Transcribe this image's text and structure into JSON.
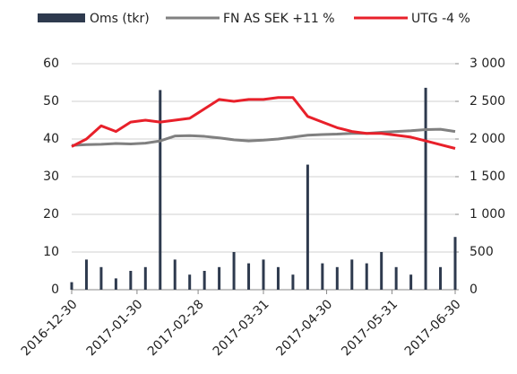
{
  "chart_data": {
    "type": "combo",
    "x": [
      "2016-12-30",
      "2017-01-06",
      "2017-01-13",
      "2017-01-20",
      "2017-01-27",
      "2017-02-03",
      "2017-02-10",
      "2017-02-17",
      "2017-02-24",
      "2017-03-03",
      "2017-03-10",
      "2017-03-17",
      "2017-03-24",
      "2017-03-31",
      "2017-04-07",
      "2017-04-14",
      "2017-04-21",
      "2017-04-28",
      "2017-05-05",
      "2017-05-12",
      "2017-05-19",
      "2017-05-26",
      "2017-06-02",
      "2017-06-09",
      "2017-06-16",
      "2017-06-23",
      "2017-06-30"
    ],
    "series": [
      {
        "name": "Oms (tkr)",
        "kind": "bar",
        "axis": "y2",
        "color": "#2e3a4e",
        "values": [
          100,
          400,
          300,
          150,
          250,
          300,
          2650,
          400,
          200,
          250,
          300,
          500,
          350,
          400,
          300,
          200,
          1660,
          350,
          300,
          400,
          350,
          500,
          300,
          200,
          2680,
          300,
          700
        ]
      },
      {
        "name": "FN AS SEK +11 %",
        "kind": "line",
        "color": "#808080",
        "values": [
          38.3,
          38.5,
          38.6,
          38.8,
          38.7,
          38.9,
          39.5,
          40.8,
          40.9,
          40.7,
          40.3,
          39.8,
          39.5,
          39.7,
          40.0,
          40.5,
          41.0,
          41.2,
          41.3,
          41.5,
          41.5,
          41.8,
          42.0,
          42.2,
          42.5,
          42.6,
          42.0
        ]
      },
      {
        "name": "UTG -4 %",
        "kind": "line",
        "color": "#e8202a",
        "values": [
          38.0,
          40.0,
          43.5,
          42.0,
          44.5,
          45.0,
          44.5,
          45.0,
          45.5,
          48.0,
          50.5,
          50.0,
          50.5,
          50.5,
          51.0,
          51.0,
          46.0,
          44.5,
          43.0,
          42.0,
          41.5,
          41.5,
          41.0,
          40.5,
          39.5,
          38.5,
          37.5
        ]
      }
    ],
    "ylim": [
      0,
      60
    ],
    "yticks": [
      0,
      10,
      20,
      30,
      40,
      50,
      60
    ],
    "y2lim": [
      0,
      3000
    ],
    "y2ticks": [
      0,
      500,
      {
        "value": 1000,
        "label": "1 000"
      },
      {
        "value": 1500,
        "label": "1 500"
      },
      {
        "value": 2000,
        "label": "2 000"
      },
      {
        "value": 2500,
        "label": "2 500"
      },
      {
        "value": 3000,
        "label": "3 000"
      }
    ],
    "xlim": [
      "2016-12-30",
      "2017-06-30"
    ],
    "xticks": [
      "2016-12-30",
      "2017-01-30",
      "2017-02-28",
      "2017-03-31",
      "2017-04-30",
      "2017-05-31",
      "2017-06-30"
    ],
    "grid": true,
    "legend": "top"
  }
}
